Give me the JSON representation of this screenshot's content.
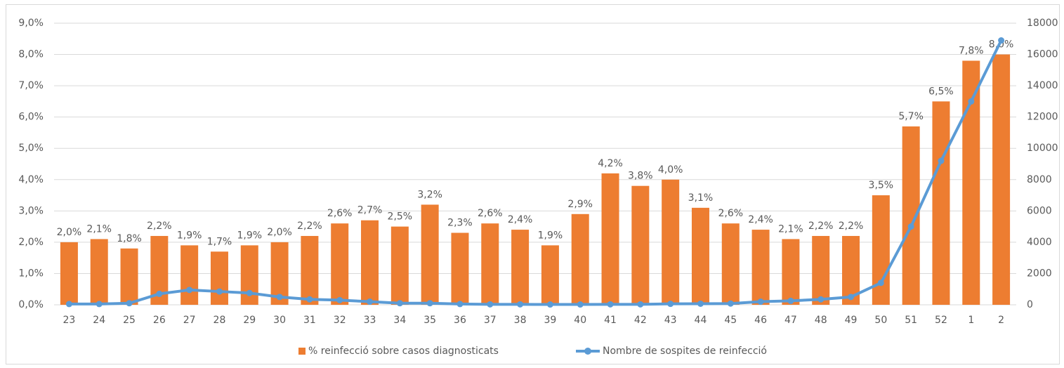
{
  "chart_data": {
    "type": "combo",
    "categories": [
      "23",
      "24",
      "25",
      "26",
      "27",
      "28",
      "29",
      "30",
      "31",
      "32",
      "33",
      "34",
      "35",
      "36",
      "37",
      "38",
      "39",
      "40",
      "41",
      "42",
      "43",
      "44",
      "45",
      "46",
      "47",
      "48",
      "49",
      "50",
      "51",
      "52",
      "1",
      "2"
    ],
    "series": [
      {
        "name": "% reinfecció sobre casos diagnosticats",
        "type": "bar",
        "color": "#ED7D31",
        "values": [
          2.0,
          2.1,
          1.8,
          2.2,
          1.9,
          1.7,
          1.9,
          2.0,
          2.2,
          2.6,
          2.7,
          2.5,
          3.2,
          2.3,
          2.6,
          2.4,
          1.9,
          2.9,
          4.2,
          3.8,
          4.0,
          3.1,
          2.6,
          2.4,
          2.1,
          2.2,
          2.2,
          3.5,
          5.7,
          6.5,
          7.8,
          8.0
        ],
        "value_labels": [
          "2,0%",
          "2,1%",
          "1,8%",
          "2,2%",
          "1,9%",
          "1,7%",
          "1,9%",
          "2,0%",
          "2,2%",
          "2,6%",
          "2,7%",
          "2,5%",
          "3,2%",
          "2,3%",
          "2,6%",
          "2,4%",
          "1,9%",
          "2,9%",
          "4,2%",
          "3,8%",
          "4,0%",
          "3,1%",
          "2,6%",
          "2,4%",
          "2,1%",
          "2,2%",
          "2,2%",
          "3,5%",
          "5,7%",
          "6,5%",
          "7,8%",
          "8,0%"
        ]
      },
      {
        "name": "Nombre de sospites de reinfecció",
        "type": "line",
        "axis": "y2",
        "color": "#5B9BD5",
        "values": [
          50,
          50,
          100,
          700,
          950,
          850,
          750,
          500,
          350,
          300,
          200,
          100,
          100,
          50,
          30,
          30,
          20,
          20,
          30,
          30,
          60,
          70,
          80,
          200,
          250,
          350,
          500,
          1400,
          5000,
          9200,
          13000,
          16900
        ]
      }
    ],
    "ylim": [
      0,
      9
    ],
    "yticks": [
      {
        "value": 0,
        "label": "0,0%"
      },
      {
        "value": 1,
        "label": "1,0%"
      },
      {
        "value": 2,
        "label": "2,0%"
      },
      {
        "value": 3,
        "label": "3,0%"
      },
      {
        "value": 4,
        "label": "4,0%"
      },
      {
        "value": 5,
        "label": "5,0%"
      },
      {
        "value": 6,
        "label": "6,0%"
      },
      {
        "value": 7,
        "label": "7,0%"
      },
      {
        "value": 8,
        "label": "8,0%"
      },
      {
        "value": 9,
        "label": "9,0%"
      }
    ],
    "y2lim": [
      0,
      18000
    ],
    "y2ticks": [
      0,
      2000,
      4000,
      6000,
      8000,
      10000,
      12000,
      14000,
      16000,
      18000
    ],
    "grid": true,
    "legend": "bottom"
  }
}
